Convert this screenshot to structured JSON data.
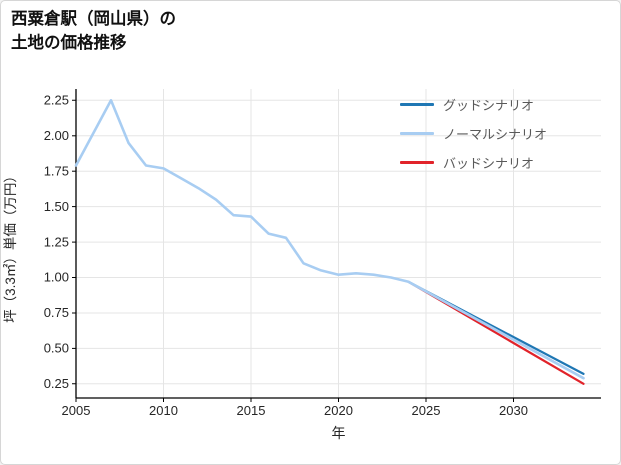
{
  "title": {
    "line1": "西粟倉駅（岡山県）の",
    "line2": "土地の価格推移"
  },
  "chart_data": {
    "type": "line",
    "title": "西粟倉駅（岡山県）の土地の価格推移",
    "xlabel": "年",
    "ylabel": "坪（3.3㎡）単価（万円）",
    "xlim": [
      2005,
      2035
    ],
    "ylim": [
      0.15,
      2.33
    ],
    "xticks": [
      2005,
      2010,
      2015,
      2020,
      2025,
      2030
    ],
    "yticks": [
      0.25,
      0.5,
      0.75,
      1.0,
      1.25,
      1.5,
      1.75,
      2.0,
      2.25
    ],
    "grid": true,
    "grid_color": "#e5e5e5",
    "axis_color": "#000000",
    "tick_label_color": "#262626",
    "legend_position": "upper right",
    "legend_text_color": "#595959",
    "series": [
      {
        "name": "グッドシナリオ",
        "color": "#1f77b4",
        "width": 2.2,
        "x": [
          2024,
          2034
        ],
        "values": [
          0.97,
          0.32
        ]
      },
      {
        "name": "ノーマルシナリオ",
        "color": "#a8cdf2",
        "width": 2.6,
        "x": [
          2005,
          2006,
          2007,
          2008,
          2009,
          2010,
          2011,
          2012,
          2013,
          2014,
          2015,
          2016,
          2017,
          2018,
          2019,
          2020,
          2021,
          2022,
          2023,
          2024,
          2034
        ],
        "values": [
          1.79,
          2.02,
          2.25,
          1.95,
          1.79,
          1.77,
          1.7,
          1.63,
          1.55,
          1.44,
          1.43,
          1.31,
          1.28,
          1.1,
          1.05,
          1.02,
          1.03,
          1.02,
          1.0,
          0.97,
          0.29
        ]
      },
      {
        "name": "バッドシナリオ",
        "color": "#e1232a",
        "width": 2.2,
        "x": [
          2024,
          2034
        ],
        "values": [
          0.97,
          0.25
        ]
      }
    ]
  }
}
